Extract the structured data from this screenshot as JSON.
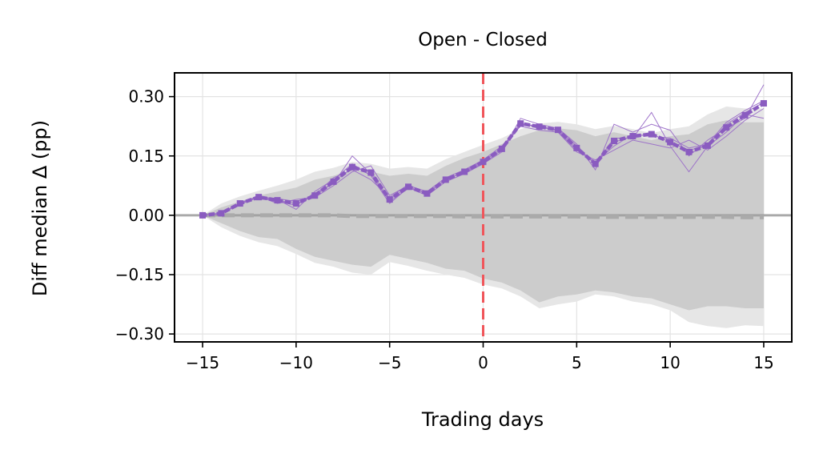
{
  "chart_data": {
    "type": "line",
    "title": "Open - Closed",
    "xlabel": "Trading days",
    "ylabel": "Diff median Δ (pp)",
    "xlim": [
      -16.5,
      16.5
    ],
    "ylim": [
      -0.32,
      0.36
    ],
    "xticks": [
      -15,
      -10,
      -5,
      0,
      5,
      10,
      15
    ],
    "xtick_labels": [
      "−15",
      "−10",
      "−5",
      "0",
      "5",
      "10",
      "15"
    ],
    "yticks": [
      0.3,
      0.15,
      0.0,
      -0.15,
      -0.3
    ],
    "ytick_labels": [
      "0.30",
      "0.15",
      "0.00",
      "−0.15",
      "−0.30"
    ],
    "grid": true,
    "event_line_x": 0,
    "x": [
      -15,
      -14,
      -13,
      -12,
      -11,
      -10,
      -9,
      -8,
      -7,
      -6,
      -5,
      -4,
      -3,
      -2,
      -1,
      0,
      1,
      2,
      3,
      4,
      5,
      6,
      7,
      8,
      9,
      10,
      11,
      12,
      13,
      14,
      15
    ],
    "series": [
      {
        "values": [
          0.0,
          0.005,
          0.03,
          0.047,
          0.038,
          0.03,
          0.048,
          0.085,
          0.12,
          0.11,
          0.04,
          0.072,
          0.055,
          0.09,
          0.11,
          0.135,
          0.17,
          0.23,
          0.225,
          0.215,
          0.17,
          0.13,
          0.185,
          0.2,
          0.205,
          0.185,
          0.165,
          0.175,
          0.23,
          0.26,
          0.285
        ]
      },
      {
        "values": [
          0.0,
          0.004,
          0.028,
          0.045,
          0.04,
          0.015,
          0.06,
          0.09,
          0.13,
          0.1,
          0.03,
          0.07,
          0.05,
          0.085,
          0.105,
          0.13,
          0.16,
          0.245,
          0.23,
          0.22,
          0.18,
          0.115,
          0.23,
          0.21,
          0.23,
          0.215,
          0.15,
          0.19,
          0.22,
          0.245,
          0.33
        ]
      },
      {
        "values": [
          0.0,
          0.005,
          0.032,
          0.048,
          0.03,
          0.04,
          0.045,
          0.075,
          0.11,
          0.125,
          0.05,
          0.075,
          0.06,
          0.095,
          0.115,
          0.14,
          0.175,
          0.225,
          0.215,
          0.21,
          0.16,
          0.14,
          0.165,
          0.19,
          0.18,
          0.17,
          0.19,
          0.165,
          0.2,
          0.24,
          0.27
        ]
      },
      {
        "values": [
          0.0,
          0.006,
          0.03,
          0.046,
          0.035,
          0.025,
          0.055,
          0.08,
          0.15,
          0.105,
          0.035,
          0.068,
          0.058,
          0.088,
          0.112,
          0.138,
          0.168,
          0.235,
          0.22,
          0.218,
          0.175,
          0.128,
          0.195,
          0.195,
          0.26,
          0.175,
          0.11,
          0.175,
          0.21,
          0.255,
          0.245
        ]
      },
      {
        "values": [
          0.0,
          0.005,
          0.029,
          0.047,
          0.042,
          0.035,
          0.05,
          0.095,
          0.115,
          0.09,
          0.045,
          0.078,
          0.052,
          0.092,
          0.108,
          0.132,
          0.165,
          0.228,
          0.228,
          0.212,
          0.165,
          0.135,
          0.175,
          0.205,
          0.2,
          0.195,
          0.17,
          0.18,
          0.235,
          0.265,
          0.29
        ]
      }
    ],
    "dotted_median": {
      "values": [
        0.0,
        0.005,
        0.03,
        0.046,
        0.038,
        0.03,
        0.05,
        0.085,
        0.122,
        0.108,
        0.04,
        0.072,
        0.055,
        0.09,
        0.11,
        0.135,
        0.168,
        0.232,
        0.224,
        0.216,
        0.17,
        0.13,
        0.188,
        0.2,
        0.205,
        0.185,
        0.16,
        0.176,
        0.222,
        0.253,
        0.283
      ]
    },
    "null_median": {
      "values": [
        0.0,
        0.0,
        0.0,
        0.0,
        0.0,
        0.0,
        0.0,
        0.0,
        -0.002,
        -0.002,
        -0.002,
        -0.002,
        -0.002,
        -0.002,
        -0.003,
        -0.003,
        -0.003,
        -0.003,
        -0.003,
        -0.003,
        -0.003,
        -0.004,
        -0.004,
        -0.004,
        -0.004,
        -0.004,
        -0.004,
        -0.004,
        -0.004,
        -0.005,
        -0.005
      ]
    },
    "null_band_inner": {
      "upper": [
        0.0,
        0.02,
        0.035,
        0.05,
        0.06,
        0.07,
        0.09,
        0.1,
        0.115,
        0.11,
        0.1,
        0.105,
        0.1,
        0.125,
        0.145,
        0.16,
        0.18,
        0.2,
        0.215,
        0.22,
        0.215,
        0.2,
        0.21,
        0.2,
        0.19,
        0.2,
        0.205,
        0.23,
        0.24,
        0.235,
        0.235
      ],
      "lower": [
        0.0,
        -0.02,
        -0.04,
        -0.055,
        -0.06,
        -0.085,
        -0.105,
        -0.115,
        -0.125,
        -0.13,
        -0.1,
        -0.11,
        -0.12,
        -0.135,
        -0.14,
        -0.16,
        -0.17,
        -0.19,
        -0.22,
        -0.205,
        -0.2,
        -0.19,
        -0.195,
        -0.205,
        -0.21,
        -0.225,
        -0.24,
        -0.23,
        -0.23,
        -0.235,
        -0.235
      ]
    },
    "null_band_outer": {
      "upper": [
        0.0,
        0.03,
        0.048,
        0.062,
        0.075,
        0.09,
        0.11,
        0.12,
        0.135,
        0.13,
        0.118,
        0.122,
        0.118,
        0.142,
        0.16,
        0.178,
        0.195,
        0.218,
        0.232,
        0.236,
        0.23,
        0.218,
        0.226,
        0.218,
        0.208,
        0.218,
        0.225,
        0.255,
        0.275,
        0.27,
        0.27
      ],
      "lower": [
        0.0,
        -0.03,
        -0.052,
        -0.068,
        -0.078,
        -0.098,
        -0.12,
        -0.13,
        -0.145,
        -0.15,
        -0.118,
        -0.128,
        -0.14,
        -0.15,
        -0.158,
        -0.175,
        -0.185,
        -0.205,
        -0.235,
        -0.225,
        -0.218,
        -0.2,
        -0.205,
        -0.218,
        -0.225,
        -0.24,
        -0.27,
        -0.28,
        -0.285,
        -0.278,
        -0.28
      ]
    },
    "colors": {
      "series": "#9b6fc8",
      "dotted_median": "#8a5cc0",
      "event_line": "#f0555a",
      "band_inner": "#cccccc",
      "band_outer": "#e6e6e6",
      "null_median": "#aaaaaa",
      "zero_line": "#999999",
      "grid": "#e3e3e3"
    }
  }
}
